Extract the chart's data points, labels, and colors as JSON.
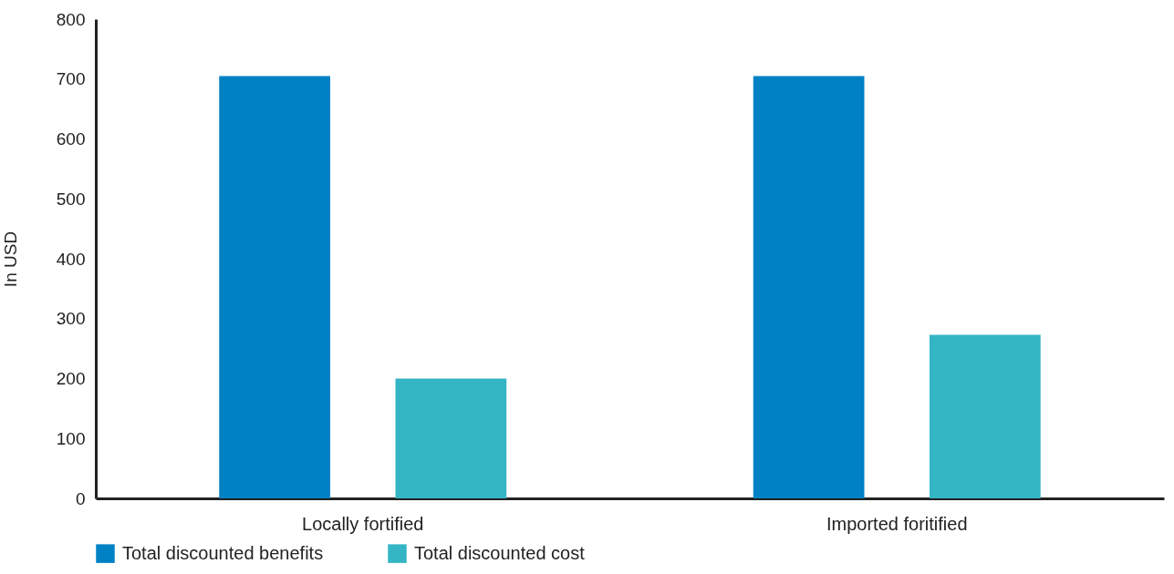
{
  "chart_data": {
    "type": "bar",
    "ylabel": "In USD",
    "categories": [
      "Locally fortified",
      "Imported foritified"
    ],
    "series": [
      {
        "name": "Total discounted benefits",
        "color": "#0081c4",
        "values": [
          705,
          705
        ]
      },
      {
        "name": "Total discounted cost",
        "color": "#34b5c4",
        "values": [
          200,
          273
        ]
      }
    ],
    "ylim": [
      0,
      800
    ],
    "yticks": [
      0,
      100,
      200,
      300,
      400,
      500,
      600,
      700,
      800
    ],
    "grid": false,
    "legend": "bottom left"
  }
}
